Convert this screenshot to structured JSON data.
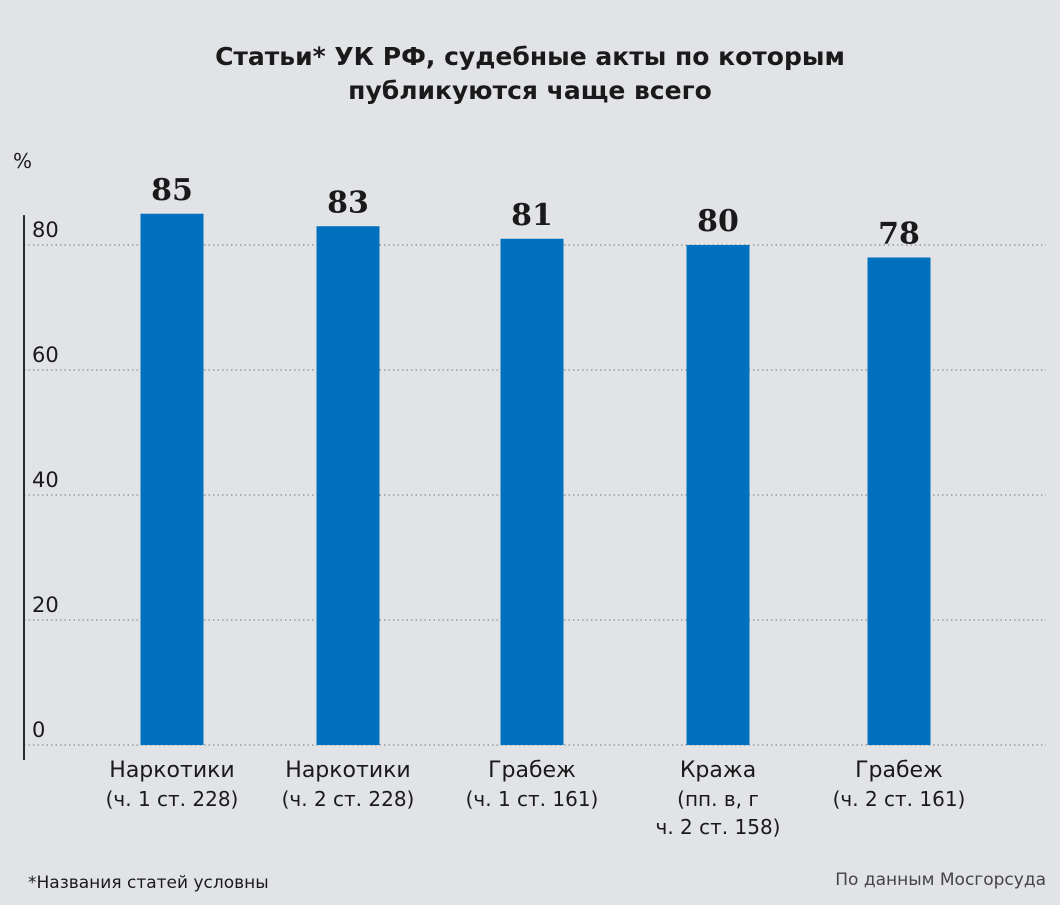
{
  "title_lines": [
    "Статьи* УК РФ, судебные акты по которым",
    "публикуются чаще всего"
  ],
  "footnote": "*Названия статей условны",
  "source": "По данным Мосгорсуда",
  "colors": {
    "bar": "#0170be",
    "background": "#e1e3e6",
    "grid": "#8a8d92",
    "axis": "#2a2a2a"
  },
  "chart_data": {
    "type": "bar",
    "ylabel": "%",
    "ylim": [
      0,
      83.5
    ],
    "yticks": [
      0,
      20,
      40,
      60,
      80
    ],
    "grid": true,
    "categories": [
      [
        "Наркотики",
        "(ч. 1 ст. 228)"
      ],
      [
        "Наркотики",
        "(ч. 2 ст. 228)"
      ],
      [
        "Грабеж",
        "(ч. 1 ст. 161)"
      ],
      [
        "Кража",
        "(пп. в, г",
        "ч. 2 ст. 158)"
      ],
      [
        "Грабеж",
        "(ч. 2 ст. 161)"
      ]
    ],
    "values": [
      85,
      83,
      81,
      80,
      78
    ],
    "data_labels": [
      "85",
      "83",
      "81",
      "80",
      "78"
    ]
  }
}
